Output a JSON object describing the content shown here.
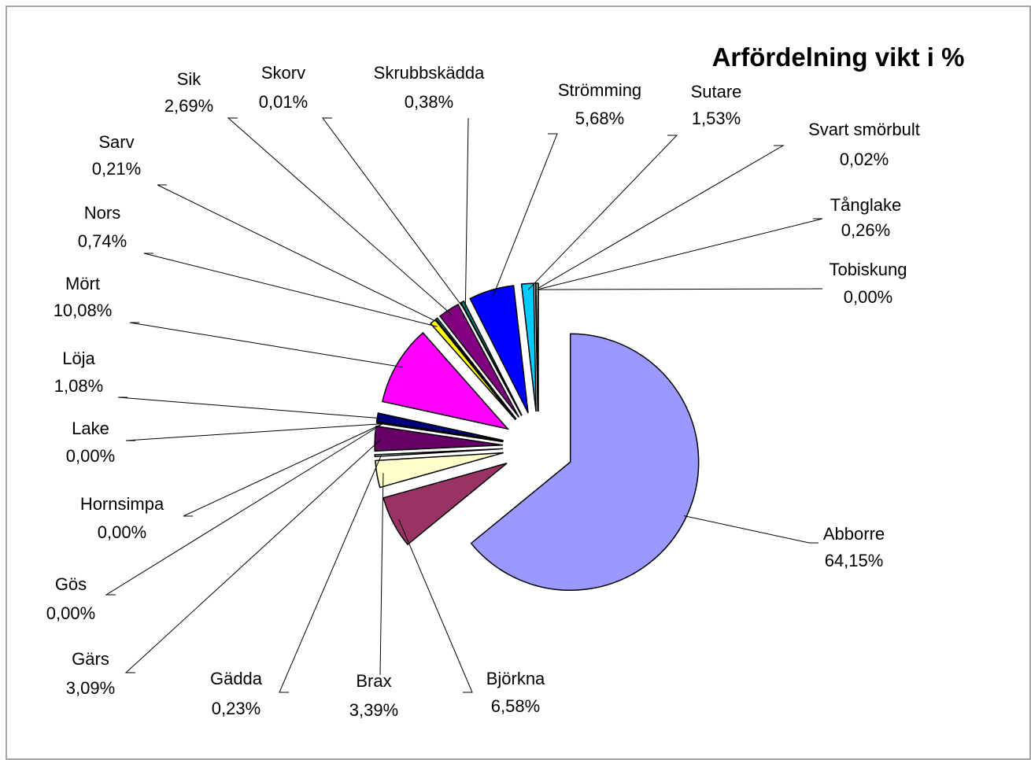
{
  "chart_data": {
    "type": "pie",
    "title": "Arfördelning vikt i %",
    "categories": [
      "Abborre",
      "Björkna",
      "Brax",
      "Gädda",
      "Gärs",
      "Gös",
      "Hornsimpa",
      "Lake",
      "Löja",
      "Mört",
      "Nors",
      "Sarv",
      "Sik",
      "Skorv",
      "Skrubbskädda",
      "Strömming",
      "Sutare",
      "Svart smörbult",
      "Tånglake",
      "Tobiskung"
    ],
    "values": [
      64.15,
      6.58,
      3.39,
      0.23,
      3.09,
      0.0,
      0.0,
      0.0,
      1.08,
      10.08,
      0.74,
      0.21,
      2.69,
      0.01,
      0.38,
      5.68,
      1.53,
      0.02,
      0.26,
      0.0
    ],
    "value_labels": [
      "64,15%",
      "6,58%",
      "3,39%",
      "0,23%",
      "3,09%",
      "0,00%",
      "0,00%",
      "0,00%",
      "1,08%",
      "10,08%",
      "0,74%",
      "0,21%",
      "2,69%",
      "0,01%",
      "0,38%",
      "5,68%",
      "1,53%",
      "0,02%",
      "0,26%",
      "0,00%"
    ],
    "colors": [
      "#9999ff",
      "#993366",
      "#ffffcc",
      "#ccffff",
      "#660066",
      "#ff8080",
      "#0066cc",
      "#ccccff",
      "#000080",
      "#ff00ff",
      "#ffff00",
      "#00ffff",
      "#800080",
      "#800000",
      "#008080",
      "#0000ff",
      "#00ccff",
      "#ccffff",
      "#ccffcc",
      "#ffff99"
    ]
  }
}
